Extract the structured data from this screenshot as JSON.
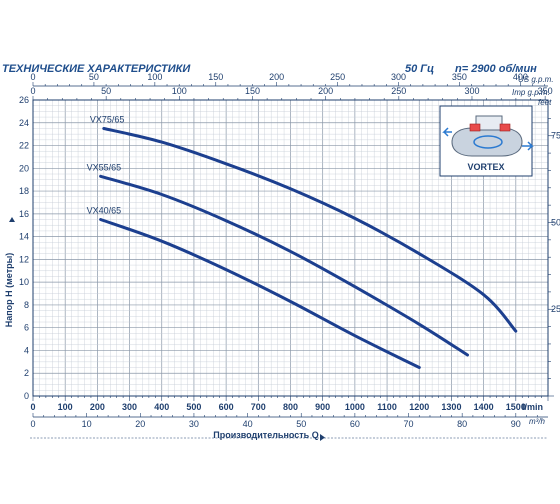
{
  "header": {
    "title": "ТЕХНИЧЕСКИЕ ХАРАКТЕРИСТИКИ",
    "frequency": "50 Гц",
    "speed": "n= 2900 об/мин"
  },
  "chart_data": {
    "type": "line",
    "xlabel": "Производительность Q",
    "ylabel": "Напор H  (метры)",
    "xlim": [
      0,
      1600
    ],
    "ylim": [
      0,
      26
    ],
    "grid": true,
    "axes": {
      "bottom_lmin": {
        "unit": "l/min",
        "ticks": [
          "0",
          "100",
          "200",
          "300",
          "400",
          "500",
          "600",
          "700",
          "800",
          "900",
          "1000",
          "1100",
          "1200",
          "1300",
          "1400",
          "1500"
        ]
      },
      "bottom_m3h": {
        "unit": "m³/h",
        "ticks": [
          "0",
          "10",
          "20",
          "30",
          "40",
          "50",
          "60",
          "70",
          "80",
          "90"
        ]
      },
      "top_imp": {
        "unit": "Imp g.p.m.",
        "ticks": [
          "0",
          "50",
          "100",
          "150",
          "200",
          "250",
          "300",
          "350"
        ]
      },
      "top_us": {
        "unit": "US g.p.m.",
        "ticks": [
          "0",
          "50",
          "100",
          "150",
          "200",
          "250",
          "300",
          "350",
          "400"
        ]
      },
      "left_m": {
        "ticks": [
          "0",
          "2",
          "4",
          "6",
          "8",
          "10",
          "12",
          "14",
          "16",
          "18",
          "20",
          "22",
          "24",
          "26"
        ]
      },
      "right_feet": {
        "unit": "feet",
        "ticks": [
          "25",
          "50",
          "75"
        ]
      }
    },
    "series": [
      {
        "name": "VX75/65",
        "x": [
          220,
          400,
          600,
          800,
          1000,
          1200,
          1400,
          1500
        ],
        "y": [
          23.5,
          22.3,
          20.4,
          18.2,
          15.6,
          12.5,
          8.9,
          5.7
        ]
      },
      {
        "name": "VX55/65",
        "x": [
          210,
          400,
          600,
          800,
          1000,
          1200,
          1350
        ],
        "y": [
          19.3,
          17.7,
          15.4,
          12.7,
          9.6,
          6.3,
          3.6
        ]
      },
      {
        "name": "VX40/65",
        "x": [
          210,
          400,
          600,
          800,
          1000,
          1200
        ],
        "y": [
          15.5,
          13.6,
          11.1,
          8.3,
          5.3,
          2.5
        ]
      }
    ]
  },
  "inset": {
    "label": "VORTEX"
  }
}
